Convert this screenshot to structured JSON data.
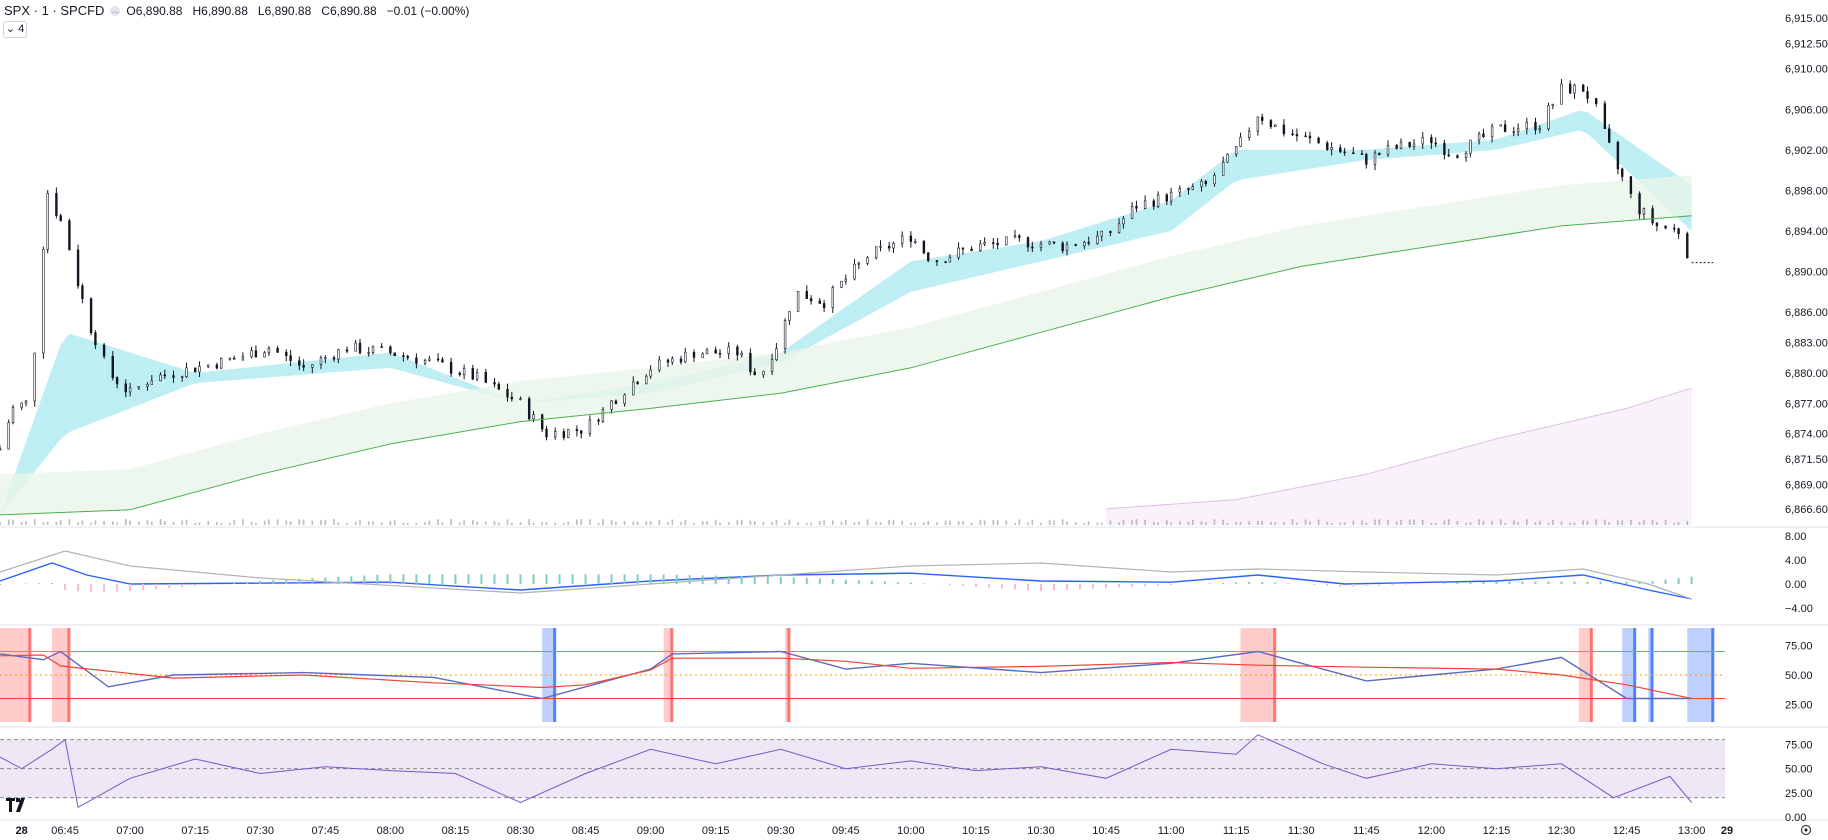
{
  "header": {
    "symbol": "SPX · 1 · SPCFD",
    "open_label": "O",
    "open": "6,890.88",
    "high_label": "H",
    "high": "6,890.88",
    "low_label": "L",
    "low": "6,890.88",
    "close_label": "C",
    "close": "6,890.88",
    "change": "−0.01 (−0.00%)"
  },
  "collapse_badge": "4",
  "colors": {
    "up_fill": "#b2ebf2",
    "down_fill": "#f8bbd0",
    "trend_fill": "#e8f5e9",
    "ma_green": "#4caf50",
    "ma_purple": "#e1bee7",
    "candle": "#131722",
    "volume": "#9e9e9e",
    "macd_blue": "#2962ff",
    "macd_orange": "#ff9800",
    "osc_green": "#4caf50",
    "osc_red": "#f44336",
    "rsi_line": "#7e57c2",
    "rsi_band": "#ede7f6",
    "vbar_red": "#ff5252",
    "vbar_blue": "#2962ff"
  },
  "chart_data": [
    {
      "type": "candlestick",
      "panel": "price",
      "x_ticks": [
        "28",
        "06:45",
        "07:00",
        "07:15",
        "07:30",
        "07:45",
        "08:00",
        "08:15",
        "08:30",
        "08:45",
        "09:00",
        "09:15",
        "09:30",
        "09:45",
        "10:00",
        "10:15",
        "10:30",
        "10:45",
        "11:00",
        "11:15",
        "11:30",
        "11:45",
        "12:00",
        "12:15",
        "12:30",
        "12:45",
        "13:00",
        "29"
      ],
      "y_ticks": [
        "6,915.00",
        "6,912.50",
        "6,910.00",
        "6,906.00",
        "6,902.00",
        "6,898.00",
        "6,894.00",
        "6,890.00",
        "6,886.00",
        "6,883.00",
        "6,880.00",
        "6,877.00",
        "6,874.00",
        "6,871.50",
        "6,869.00",
        "6,866.60"
      ],
      "last_price": "6,890.88",
      "close_series": [
        {
          "t": "06:30",
          "close": 6872.5
        },
        {
          "t": "06:33",
          "close": 6876.5
        },
        {
          "t": "06:37",
          "close": 6877.2
        },
        {
          "t": "06:41",
          "close": 6897.8
        },
        {
          "t": "06:45",
          "close": 6894.0
        },
        {
          "t": "06:50",
          "close": 6885.5
        },
        {
          "t": "06:55",
          "close": 6880.0
        },
        {
          "t": "07:00",
          "close": 6878.0
        },
        {
          "t": "07:05",
          "close": 6879.5
        },
        {
          "t": "07:15",
          "close": 6880.5
        },
        {
          "t": "07:25",
          "close": 6881.5
        },
        {
          "t": "07:32",
          "close": 6882.5
        },
        {
          "t": "07:40",
          "close": 6880.5
        },
        {
          "t": "07:50",
          "close": 6882.5
        },
        {
          "t": "08:00",
          "close": 6882.0
        },
        {
          "t": "08:10",
          "close": 6881.0
        },
        {
          "t": "08:20",
          "close": 6879.5
        },
        {
          "t": "08:30",
          "close": 6877.0
        },
        {
          "t": "08:36",
          "close": 6874.0
        },
        {
          "t": "08:45",
          "close": 6874.5
        },
        {
          "t": "08:53",
          "close": 6878.0
        },
        {
          "t": "09:00",
          "close": 6880.5
        },
        {
          "t": "09:10",
          "close": 6882.0
        },
        {
          "t": "09:20",
          "close": 6882.0
        },
        {
          "t": "09:25",
          "close": 6879.5
        },
        {
          "t": "09:30",
          "close": 6883.5
        },
        {
          "t": "09:33",
          "close": 6888.0
        },
        {
          "t": "09:40",
          "close": 6887.0
        },
        {
          "t": "09:50",
          "close": 6891.5
        },
        {
          "t": "10:00",
          "close": 6893.5
        },
        {
          "t": "10:05",
          "close": 6891.0
        },
        {
          "t": "10:15",
          "close": 6892.5
        },
        {
          "t": "10:25",
          "close": 6893.0
        },
        {
          "t": "10:35",
          "close": 6892.5
        },
        {
          "t": "10:45",
          "close": 6893.5
        },
        {
          "t": "10:52",
          "close": 6896.5
        },
        {
          "t": "11:00",
          "close": 6897.5
        },
        {
          "t": "11:08",
          "close": 6898.5
        },
        {
          "t": "11:15",
          "close": 6902.0
        },
        {
          "t": "11:20",
          "close": 6905.5
        },
        {
          "t": "11:25",
          "close": 6904.0
        },
        {
          "t": "11:35",
          "close": 6902.5
        },
        {
          "t": "11:45",
          "close": 6901.0
        },
        {
          "t": "11:50",
          "close": 6902.0
        },
        {
          "t": "12:00",
          "close": 6903.0
        },
        {
          "t": "12:05",
          "close": 6901.5
        },
        {
          "t": "12:15",
          "close": 6904.0
        },
        {
          "t": "12:25",
          "close": 6904.5
        },
        {
          "t": "12:30",
          "close": 6908.0
        },
        {
          "t": "12:35",
          "close": 6908.0
        },
        {
          "t": "12:38",
          "close": 6906.0
        },
        {
          "t": "12:42",
          "close": 6901.0
        },
        {
          "t": "12:47",
          "close": 6896.5
        },
        {
          "t": "12:52",
          "close": 6894.5
        },
        {
          "t": "12:57",
          "close": 6894.0
        },
        {
          "t": "13:00",
          "close": 6890.9
        }
      ],
      "moving_averages": [
        {
          "name": "fast",
          "points": [
            {
              "t": "06:30",
              "v": 6866
            },
            {
              "t": "06:45",
              "v": 6884
            },
            {
              "t": "07:15",
              "v": 6880
            },
            {
              "t": "08:00",
              "v": 6882
            },
            {
              "t": "08:30",
              "v": 6877
            },
            {
              "t": "09:00",
              "v": 6879
            },
            {
              "t": "09:30",
              "v": 6882
            },
            {
              "t": "10:00",
              "v": 6891
            },
            {
              "t": "10:30",
              "v": 6893
            },
            {
              "t": "11:00",
              "v": 6897
            },
            {
              "t": "11:15",
              "v": 6902
            },
            {
              "t": "11:45",
              "v": 6902
            },
            {
              "t": "12:15",
              "v": 6903
            },
            {
              "t": "12:35",
              "v": 6906
            },
            {
              "t": "13:00",
              "v": 6898.5
            }
          ]
        },
        {
          "name": "slow",
          "points": [
            {
              "t": "06:30",
              "v": 6866
            },
            {
              "t": "06:45",
              "v": 6874
            },
            {
              "t": "07:15",
              "v": 6879
            },
            {
              "t": "08:00",
              "v": 6880.5
            },
            {
              "t": "08:30",
              "v": 6877
            },
            {
              "t": "09:00",
              "v": 6878
            },
            {
              "t": "09:30",
              "v": 6881
            },
            {
              "t": "10:00",
              "v": 6888
            },
            {
              "t": "10:30",
              "v": 6891
            },
            {
              "t": "11:00",
              "v": 6894
            },
            {
              "t": "11:15",
              "v": 6899
            },
            {
              "t": "11:45",
              "v": 6901
            },
            {
              "t": "12:15",
              "v": 6902
            },
            {
              "t": "12:35",
              "v": 6904
            },
            {
              "t": "13:00",
              "v": 6894
            }
          ]
        },
        {
          "name": "trend",
          "points": [
            {
              "t": "06:30",
              "v": 6866
            },
            {
              "t": "07:00",
              "v": 6866.5
            },
            {
              "t": "07:30",
              "v": 6870
            },
            {
              "t": "08:00",
              "v": 6873
            },
            {
              "t": "08:30",
              "v": 6875.2
            },
            {
              "t": "09:00",
              "v": 6876.5
            },
            {
              "t": "09:30",
              "v": 6878
            },
            {
              "t": "10:00",
              "v": 6880.5
            },
            {
              "t": "10:30",
              "v": 6884
            },
            {
              "t": "11:00",
              "v": 6887.5
            },
            {
              "t": "11:30",
              "v": 6890.5
            },
            {
              "t": "12:00",
              "v": 6892.5
            },
            {
              "t": "12:30",
              "v": 6894.5
            },
            {
              "t": "13:00",
              "v": 6895.5
            }
          ]
        },
        {
          "name": "long",
          "points": [
            {
              "t": "10:45",
              "v": 6866.6
            },
            {
              "t": "11:15",
              "v": 6867.5
            },
            {
              "t": "11:45",
              "v": 6870
            },
            {
              "t": "12:15",
              "v": 6873.5
            },
            {
              "t": "12:45",
              "v": 6876.5
            },
            {
              "t": "13:00",
              "v": 6878.5
            }
          ]
        }
      ]
    },
    {
      "type": "line",
      "panel": "macd",
      "y_ticks": [
        "8.00",
        "4.00",
        "0.00",
        "−4.00"
      ],
      "series": [
        {
          "name": "",
          "points": [
            {
              "t": "06:30",
              "v": 0.5
            },
            {
              "t": "06:42",
              "v": 3.5
            },
            {
              "t": "06:50",
              "v": 1.5
            },
            {
              "t": "07:00",
              "v": 0
            },
            {
              "t": "08:00",
              "v": 0.3
            },
            {
              "t": "08:30",
              "v": -1
            },
            {
              "t": "09:00",
              "v": 0.5
            },
            {
              "t": "09:30",
              "v": 1.5
            },
            {
              "t": "10:00",
              "v": 1.8
            },
            {
              "t": "10:30",
              "v": 0.5
            },
            {
              "t": "11:00",
              "v": 0.3
            },
            {
              "t": "11:20",
              "v": 1.5
            },
            {
              "t": "11:40",
              "v": 0
            },
            {
              "t": "12:15",
              "v": 0.5
            },
            {
              "t": "12:35",
              "v": 1.5
            },
            {
              "t": "12:50",
              "v": -1
            },
            {
              "t": "13:00",
              "v": -2.5
            }
          ]
        },
        {
          "name": "",
          "points": [
            {
              "t": "06:30",
              "v": 2
            },
            {
              "t": "06:45",
              "v": 5.5
            },
            {
              "t": "07:00",
              "v": 3
            },
            {
              "t": "07:30",
              "v": 1
            },
            {
              "t": "08:30",
              "v": -1.5
            },
            {
              "t": "09:00",
              "v": 0
            },
            {
              "t": "09:30",
              "v": 1.5
            },
            {
              "t": "10:00",
              "v": 3
            },
            {
              "t": "10:30",
              "v": 3.5
            },
            {
              "t": "11:00",
              "v": 2
            },
            {
              "t": "11:20",
              "v": 2.5
            },
            {
              "t": "11:45",
              "v": 2
            },
            {
              "t": "12:15",
              "v": 1.5
            },
            {
              "t": "12:35",
              "v": 2.5
            },
            {
              "t": "12:50",
              "v": 0
            },
            {
              "t": "13:00",
              "v": -2.5
            }
          ]
        }
      ]
    },
    {
      "type": "line",
      "panel": "oscillator",
      "y_ticks": [
        "75.00",
        "50.00",
        "25.00"
      ],
      "reference_lines": [
        70,
        50,
        30
      ],
      "series": [
        {
          "name": "",
          "points": [
            {
              "t": "06:30",
              "v": 68
            },
            {
              "t": "06:40",
              "v": 63
            },
            {
              "t": "06:44",
              "v": 70
            },
            {
              "t": "06:55",
              "v": 40
            },
            {
              "t": "07:10",
              "v": 50
            },
            {
              "t": "07:40",
              "v": 52
            },
            {
              "t": "08:10",
              "v": 48
            },
            {
              "t": "08:35",
              "v": 30
            },
            {
              "t": "08:45",
              "v": 40
            },
            {
              "t": "09:00",
              "v": 55
            },
            {
              "t": "09:05",
              "v": 68
            },
            {
              "t": "09:30",
              "v": 70
            },
            {
              "t": "09:45",
              "v": 55
            },
            {
              "t": "10:00",
              "v": 60
            },
            {
              "t": "10:30",
              "v": 52
            },
            {
              "t": "11:00",
              "v": 60
            },
            {
              "t": "11:20",
              "v": 70
            },
            {
              "t": "11:45",
              "v": 45
            },
            {
              "t": "12:15",
              "v": 55
            },
            {
              "t": "12:30",
              "v": 65
            },
            {
              "t": "12:45",
              "v": 30
            },
            {
              "t": "13:00",
              "v": 30
            }
          ]
        }
      ]
    },
    {
      "type": "line",
      "panel": "rsi",
      "y_ticks": [
        "75.00",
        "50.00",
        "25.00",
        "0.00"
      ],
      "series": [
        {
          "name": "",
          "points": [
            {
              "t": "06:30",
              "v": 62
            },
            {
              "t": "06:35",
              "v": 50
            },
            {
              "t": "06:42",
              "v": 70
            },
            {
              "t": "06:45",
              "v": 80
            },
            {
              "t": "06:48",
              "v": 10
            },
            {
              "t": "07:00",
              "v": 40
            },
            {
              "t": "07:15",
              "v": 60
            },
            {
              "t": "07:30",
              "v": 45
            },
            {
              "t": "07:45",
              "v": 52
            },
            {
              "t": "08:00",
              "v": 48
            },
            {
              "t": "08:15",
              "v": 45
            },
            {
              "t": "08:30",
              "v": 15
            },
            {
              "t": "08:45",
              "v": 45
            },
            {
              "t": "09:00",
              "v": 70
            },
            {
              "t": "09:15",
              "v": 55
            },
            {
              "t": "09:30",
              "v": 70
            },
            {
              "t": "09:45",
              "v": 50
            },
            {
              "t": "10:00",
              "v": 58
            },
            {
              "t": "10:15",
              "v": 48
            },
            {
              "t": "10:30",
              "v": 52
            },
            {
              "t": "10:45",
              "v": 40
            },
            {
              "t": "11:00",
              "v": 70
            },
            {
              "t": "11:15",
              "v": 65
            },
            {
              "t": "11:20",
              "v": 85
            },
            {
              "t": "11:35",
              "v": 55
            },
            {
              "t": "11:45",
              "v": 40
            },
            {
              "t": "12:00",
              "v": 55
            },
            {
              "t": "12:15",
              "v": 50
            },
            {
              "t": "12:30",
              "v": 55
            },
            {
              "t": "12:42",
              "v": 20
            },
            {
              "t": "12:55",
              "v": 42
            },
            {
              "t": "13:00",
              "v": 15
            }
          ]
        }
      ]
    }
  ],
  "vertical_highlights": [
    {
      "from": "06:30",
      "to": "06:37",
      "kind": "red"
    },
    {
      "from": "06:42",
      "to": "06:46",
      "kind": "red"
    },
    {
      "from": "08:35",
      "to": "08:38",
      "kind": "blue"
    },
    {
      "from": "09:03",
      "to": "09:05",
      "kind": "red"
    },
    {
      "from": "09:31",
      "to": "09:32",
      "kind": "red"
    },
    {
      "from": "11:16",
      "to": "11:24",
      "kind": "red"
    },
    {
      "from": "12:34",
      "to": "12:37",
      "kind": "red"
    },
    {
      "from": "12:44",
      "to": "12:47",
      "kind": "blue"
    },
    {
      "from": "12:50",
      "to": "12:51",
      "kind": "blue"
    },
    {
      "from": "12:59",
      "to": "13:05",
      "kind": "blue"
    }
  ]
}
